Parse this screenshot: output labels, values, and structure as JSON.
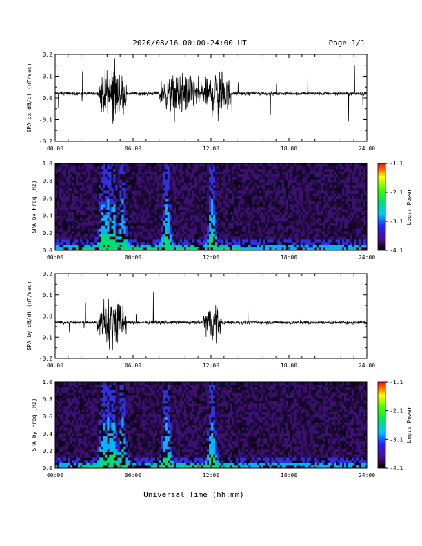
{
  "header": {
    "title": "2020/08/16  00:00-24:00 UT",
    "page": "Page 1/1"
  },
  "footer": {
    "xlabel": "Universal Time (hh:mm)"
  },
  "chart_data": [
    {
      "type": "line",
      "ylabel": "SPA bx dB/dt (nT/sec)",
      "xlim": [
        0,
        24
      ],
      "ylim": [
        -0.2,
        0.2
      ],
      "x_tick_values": [
        0,
        6,
        12,
        18,
        24
      ],
      "x_tick_labels": [
        "00:00",
        "06:00",
        "12:00",
        "18:00",
        "24:00"
      ],
      "y_ticks": [
        -0.2,
        -0.1,
        0.0,
        0.1,
        0.2
      ],
      "y_tick_labels": [
        "-0.2",
        "-0.1",
        "0.0",
        "0.1",
        "0.2"
      ],
      "baseline": 0.02,
      "activity_hours": [
        {
          "start": 3.4,
          "end": 5.5,
          "amplitude": 0.2
        },
        {
          "start": 8.0,
          "end": 11.5,
          "amplitude": 0.15
        },
        {
          "start": 11.5,
          "end": 13.5,
          "amplitude": 0.18
        }
      ],
      "series_color": "#000000"
    },
    {
      "type": "heatmap",
      "ylabel": "SPA bx Freq (Hz)",
      "xlim": [
        0,
        24
      ],
      "ylim": [
        0.0,
        1.0
      ],
      "x_tick_values": [
        0,
        6,
        12,
        18,
        24
      ],
      "x_tick_labels": [
        "00:00",
        "06:00",
        "12:00",
        "18:00",
        "24:00"
      ],
      "y_ticks": [
        0.0,
        0.2,
        0.4,
        0.6,
        0.8,
        1.0
      ],
      "y_tick_labels": [
        "0.0",
        "0.2",
        "0.4",
        "0.6",
        "0.8",
        "1.0"
      ],
      "colorbar": {
        "label": "Log₁₀ Power",
        "range": [
          -4.1,
          -1.1
        ],
        "ticks": [
          -1.1,
          -2.1,
          -3.1,
          -4.1
        ],
        "tick_labels": [
          "-1.1",
          "-2.1",
          "-3.1",
          "-4.1"
        ]
      }
    },
    {
      "type": "line",
      "ylabel": "SPA by dB/dt (nT/sec)",
      "xlim": [
        0,
        24
      ],
      "ylim": [
        -0.2,
        0.2
      ],
      "x_tick_values": [
        0,
        6,
        12,
        18,
        24
      ],
      "x_tick_labels": [
        "00:00",
        "06:00",
        "12:00",
        "18:00",
        "24:00"
      ],
      "y_ticks": [
        -0.2,
        -0.1,
        0.0,
        0.1,
        0.2
      ],
      "y_tick_labels": [
        "-0.2",
        "-0.1",
        "0.0",
        "0.1",
        "0.2"
      ],
      "baseline": -0.03,
      "activity_hours": [
        {
          "start": 3.2,
          "end": 5.5,
          "amplitude": 0.2
        },
        {
          "start": 11.4,
          "end": 12.8,
          "amplitude": 0.14
        }
      ],
      "series_color": "#000000"
    },
    {
      "type": "heatmap",
      "ylabel": "SPA by Freq (Hz)",
      "xlim": [
        0,
        24
      ],
      "ylim": [
        0.0,
        1.0
      ],
      "x_tick_values": [
        0,
        6,
        12,
        18,
        24
      ],
      "x_tick_labels": [
        "00:00",
        "06:00",
        "12:00",
        "18:00",
        "24:00"
      ],
      "y_ticks": [
        0.0,
        0.2,
        0.4,
        0.6,
        0.8,
        1.0
      ],
      "y_tick_labels": [
        "0.0",
        "0.2",
        "0.4",
        "0.6",
        "0.8",
        "1.0"
      ],
      "colorbar": {
        "label": "Log₁₀ Power",
        "range": [
          -4.1,
          -1.1
        ],
        "ticks": [
          -1.1,
          -2.1,
          -3.1,
          -4.1
        ],
        "tick_labels": [
          "-1.1",
          "-2.1",
          "-3.1",
          "-4.1"
        ]
      }
    }
  ]
}
